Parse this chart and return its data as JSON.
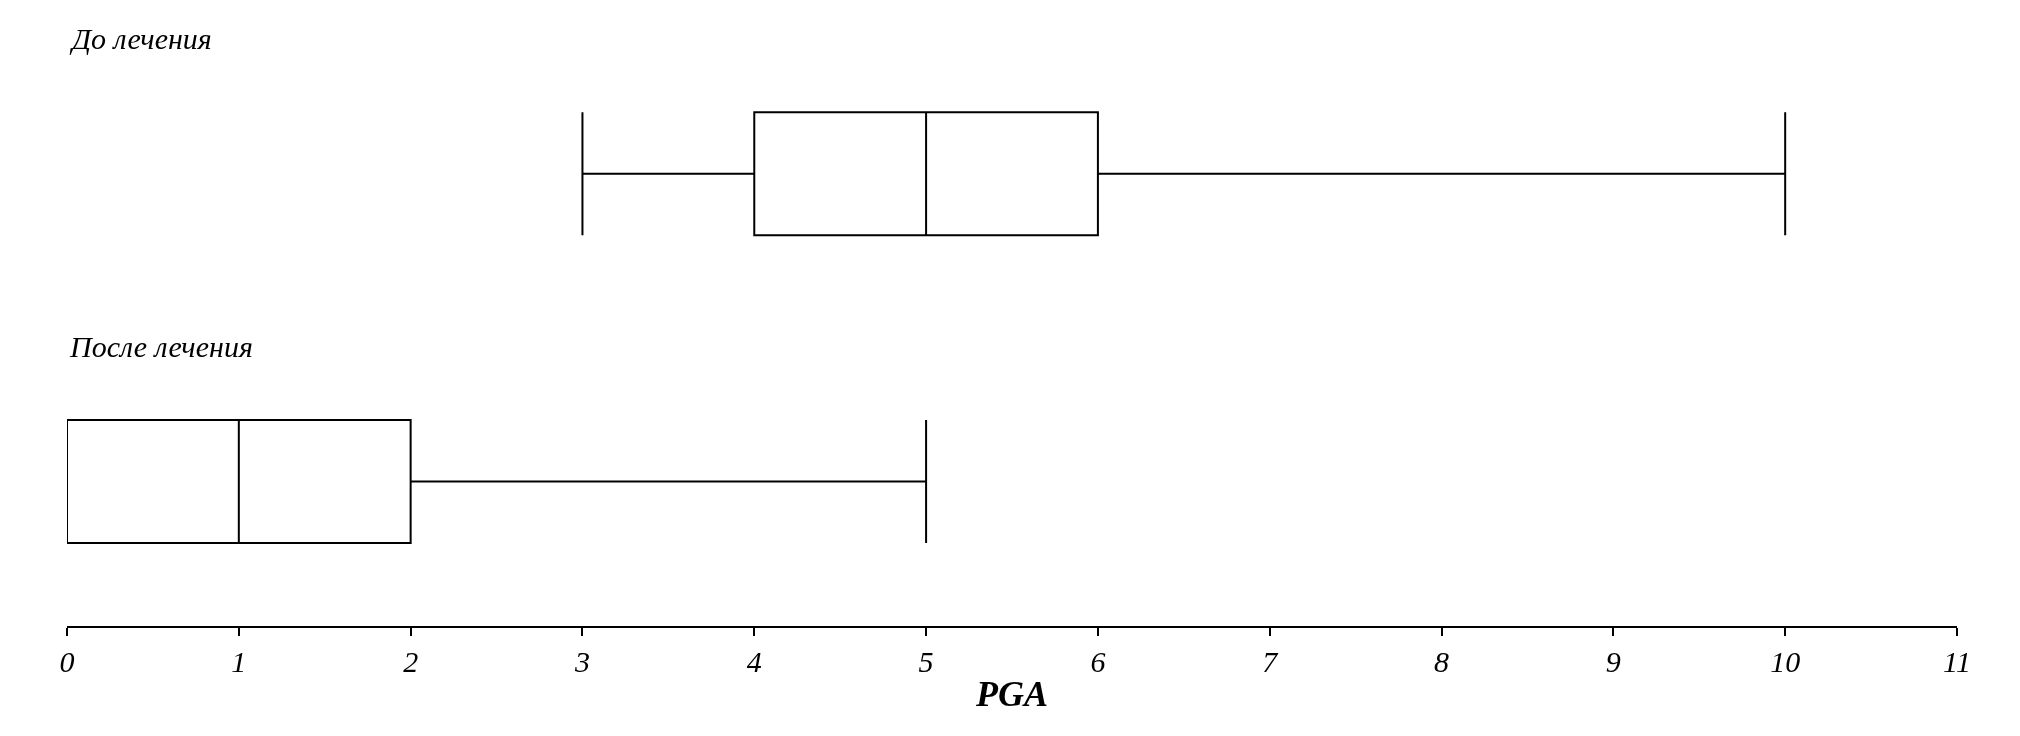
{
  "chart_data": {
    "type": "box",
    "orientation": "horizontal",
    "categories": [
      "До лечения",
      "После лечения"
    ],
    "boxes": [
      {
        "low": 3,
        "q1": 4,
        "median": 5,
        "q3": 6,
        "high": 10
      },
      {
        "low": 0,
        "q1": 0,
        "median": 1,
        "q3": 2,
        "high": 5
      }
    ],
    "color": "#000000",
    "xlabel": "PGA",
    "xlim": [
      0,
      11
    ],
    "xticks": [
      0,
      1,
      2,
      3,
      4,
      5,
      6,
      7,
      8,
      9,
      10,
      11
    ]
  }
}
